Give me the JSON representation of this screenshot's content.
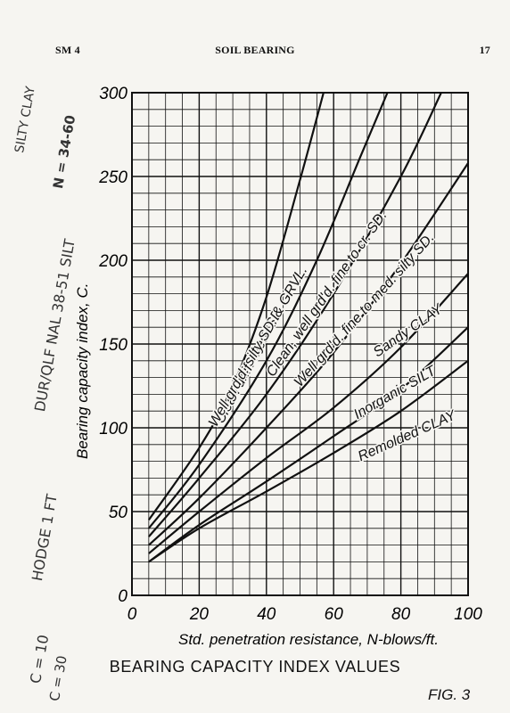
{
  "header": {
    "left": "SM 4",
    "center": "SOIL BEARING",
    "page_number": "17"
  },
  "figure": {
    "title": "BEARING CAPACITY INDEX VALUES",
    "number": "FIG. 3"
  },
  "chart_data": {
    "type": "line",
    "ylabel": "Bearing capacity index, C.",
    "xlabel": "Std. penetration resistance, N-blows/ft.",
    "xlim": [
      0,
      100
    ],
    "ylim": [
      0,
      300
    ],
    "x_ticks": [
      0,
      20,
      40,
      60,
      80,
      100
    ],
    "y_ticks": [
      0,
      50,
      100,
      150,
      200,
      250,
      300
    ],
    "grid": "on",
    "series": [
      {
        "name": "Clean unif. med. SD.",
        "x": [
          5,
          20,
          30,
          40,
          50,
          57
        ],
        "y": [
          45,
          88,
          125,
          178,
          248,
          300
        ]
      },
      {
        "name": "Well grd'd. silty SD. & GRVL.",
        "x": [
          5,
          20,
          40,
          55,
          68,
          76
        ],
        "y": [
          40,
          78,
          140,
          200,
          262,
          300
        ]
      },
      {
        "name": "Clean, well grd'd. fine to cr. SD.",
        "x": [
          5,
          20,
          40,
          60,
          80,
          92
        ],
        "y": [
          35,
          70,
          120,
          180,
          250,
          300
        ]
      },
      {
        "name": "Well grd'd. fine to med. silty SD.",
        "x": [
          5,
          20,
          40,
          60,
          80,
          100
        ],
        "y": [
          30,
          58,
          100,
          145,
          198,
          258
        ]
      },
      {
        "name": "Sandy CLAY",
        "x": [
          5,
          20,
          40,
          60,
          80,
          100
        ],
        "y": [
          25,
          50,
          82,
          112,
          148,
          192
        ]
      },
      {
        "name": "Inorganic SILT",
        "x": [
          5,
          20,
          40,
          60,
          80,
          100
        ],
        "y": [
          20,
          42,
          68,
          95,
          123,
          160
        ]
      },
      {
        "name": "Remolded CLAY",
        "x": [
          5,
          20,
          40,
          60,
          80,
          100
        ],
        "y": [
          20,
          40,
          62,
          85,
          110,
          140
        ]
      }
    ]
  },
  "handwriting": {
    "line1": "SILTY CLAY",
    "line2": "DUR/QLF NAL 38-51 SILT",
    "line3": "N = 34-60",
    "line4": "HODGE 1 FT",
    "line5": "C = 10",
    "line6": "C = 30"
  }
}
